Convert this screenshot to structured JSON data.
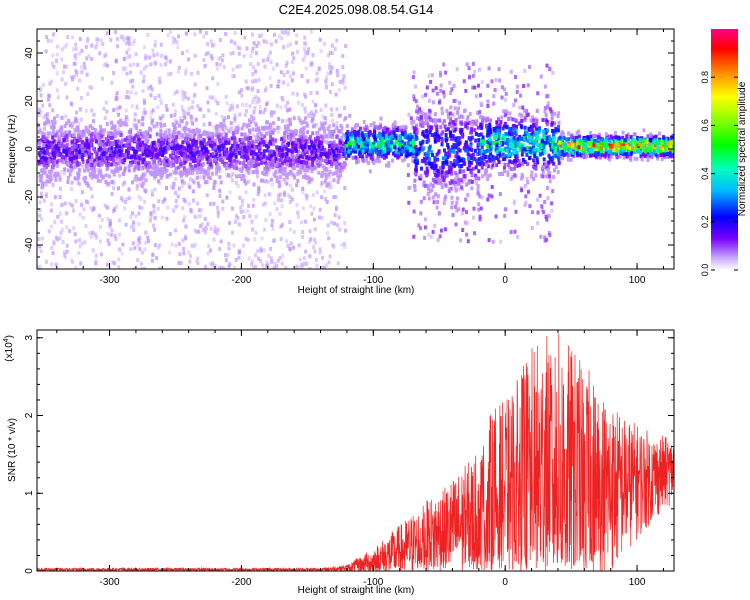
{
  "title": "C2E4.2025.098.08.54.G14",
  "colors": {
    "snr_line": "#ee2222",
    "axis": "#000000",
    "spectrogram_low": "#c9a8ff",
    "spectrogram_mid": "#5500ff"
  },
  "chart_data": [
    {
      "type": "heatmap",
      "title": "C2E4.2025.098.08.54.G14",
      "xlabel": "Height of straight line (km)",
      "ylabel": "Frequency (Hz)",
      "xlim": [
        -355,
        128
      ],
      "ylim": [
        -50,
        50
      ],
      "x_ticks": [
        -300,
        -200,
        -100,
        0,
        100
      ],
      "y_ticks": [
        -40,
        -20,
        0,
        20,
        40
      ],
      "colorbar": {
        "label": "Normalized spectral amplitude",
        "range": [
          0.0,
          1.0
        ],
        "ticks": [
          0.0,
          0.2,
          0.4,
          0.6,
          0.8
        ],
        "tick_labels": [
          "0.0",
          "0.2",
          "0.4",
          "0.6",
          "0.8"
        ],
        "colormap": "rainbow"
      },
      "bands": [
        {
          "x_range": [
            -355,
            -122
          ],
          "freq_center": 0,
          "freq_halfwidth": 8,
          "amplitude": 0.15,
          "scatter_halfwidth": 50
        },
        {
          "x_range": [
            -122,
            -70
          ],
          "freq_center": 3,
          "freq_halfwidth": 5,
          "amplitude": 0.45
        },
        {
          "x_range": [
            -70,
            -20
          ],
          "freq_center": 0,
          "freq_halfwidth": 12,
          "amplitude": 0.25
        },
        {
          "x_range": [
            -20,
            40
          ],
          "freq_center": 3,
          "freq_halfwidth": 8,
          "amplitude": 0.4
        },
        {
          "x_range": [
            40,
            128
          ],
          "freq_center": 2,
          "freq_halfwidth": 3,
          "amplitude": 0.75
        }
      ]
    },
    {
      "type": "line",
      "xlabel": "Height of straight line (km)",
      "ylabel": "SNR (10 * v/v)",
      "scale_label": "(x10",
      "scale_exponent": "4",
      "scale_close": ")",
      "xlim": [
        -355,
        128
      ],
      "ylim": [
        0,
        3.1
      ],
      "x_ticks": [
        -300,
        -200,
        -100,
        0,
        100
      ],
      "y_ticks": [
        0,
        1,
        2,
        3
      ],
      "series": [
        {
          "x": [
            -355,
            -300,
            -200,
            -140,
            -120,
            -100,
            -80,
            -60,
            -40,
            -20,
            -10,
            0,
            10,
            20,
            30,
            40,
            50,
            60,
            70,
            80,
            90,
            100,
            110,
            128
          ],
          "y_mean": [
            0.02,
            0.02,
            0.02,
            0.02,
            0.04,
            0.12,
            0.25,
            0.4,
            0.55,
            0.7,
            0.9,
            0.95,
            1.0,
            1.15,
            1.25,
            1.3,
            1.15,
            1.05,
            1.0,
            1.05,
            1.1,
            1.15,
            1.2,
            1.3
          ],
          "y_peak": [
            0.04,
            0.04,
            0.04,
            0.04,
            0.08,
            0.3,
            0.6,
            0.9,
            1.2,
            1.55,
            2.1,
            2.2,
            2.5,
            2.9,
            3.05,
            3.1,
            2.9,
            2.7,
            2.4,
            2.2,
            2.0,
            1.9,
            1.8,
            1.7
          ]
        }
      ]
    }
  ],
  "top_chart": {
    "title": "C2E4.2025.098.08.54.G14",
    "xlabel": "Height of straight line (km)",
    "ylabel": "Frequency (Hz)",
    "xticks": [
      "-300",
      "-200",
      "-100",
      "0",
      "100"
    ],
    "yticks": [
      "40",
      "20",
      "0",
      "-20",
      "-40"
    ]
  },
  "colorbar": {
    "label": "Normalized spectral amplitude",
    "ticks": [
      "0.0",
      "0.2",
      "0.4",
      "0.6",
      "0.8"
    ]
  },
  "bottom_chart": {
    "xlabel": "Height of straight line (km)",
    "ylabel": "SNR (10 * v/v)",
    "xticks": [
      "-300",
      "-200",
      "-100",
      "0",
      "100"
    ],
    "yticks": [
      "0",
      "1",
      "2",
      "3"
    ],
    "scale_label": "(x10",
    "scale_exponent": "4",
    "scale_close": ")"
  }
}
